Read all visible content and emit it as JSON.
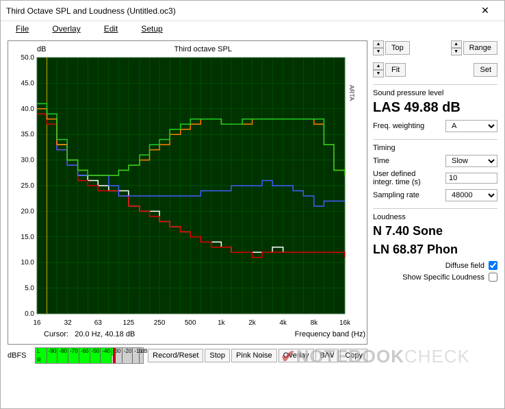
{
  "window": {
    "title": "Third Octave SPL and Loudness (Untitled.oc3)"
  },
  "menu": {
    "file": "File",
    "overlay": "Overlay",
    "edit": "Edit",
    "setup": "Setup"
  },
  "chart": {
    "title": "Third octave SPL",
    "yunit": "dB",
    "ylim": [
      0,
      50
    ],
    "ytick_step": 5,
    "xlabel": "Frequency band (Hz)",
    "xticks": [
      16,
      32,
      63,
      125,
      250,
      500,
      "1k",
      "2k",
      "4k",
      "8k",
      "16k"
    ],
    "xvals_log": [
      16,
      20,
      25,
      31.5,
      40,
      50,
      63,
      80,
      100,
      125,
      160,
      200,
      250,
      315,
      400,
      500,
      630,
      800,
      1000,
      1250,
      1600,
      2000,
      2500,
      3150,
      4000,
      5000,
      6300,
      8000,
      10000,
      12500,
      16000
    ],
    "bg": "#003300",
    "grid": "#006600",
    "border": "#888888",
    "side_label": "ARTA",
    "series": [
      {
        "name": "white",
        "color": "#ffffff",
        "step": [
          40,
          38,
          33,
          30,
          27,
          26,
          25,
          24,
          24,
          21,
          20,
          20,
          18,
          17,
          16,
          15,
          14,
          14,
          13,
          12,
          12,
          12,
          12,
          13,
          12,
          12,
          12,
          12,
          12,
          12,
          12
        ]
      },
      {
        "name": "red",
        "color": "#e00000",
        "step": [
          39,
          37,
          32,
          29,
          26,
          25,
          24,
          24,
          23,
          21,
          20,
          19,
          18,
          17,
          16,
          15,
          14,
          13,
          13,
          12,
          12,
          11,
          12,
          12,
          12,
          12,
          12,
          12,
          12,
          12,
          11
        ]
      },
      {
        "name": "blue",
        "color": "#4060ff",
        "step": [
          40,
          38,
          32,
          29,
          27,
          27,
          27,
          25,
          23,
          23,
          23,
          23,
          23,
          23,
          23,
          23,
          24,
          24,
          24,
          25,
          25,
          25,
          26,
          25,
          25,
          24,
          23,
          21,
          22,
          22,
          22
        ]
      },
      {
        "name": "orange",
        "color": "#ff8000",
        "step": [
          40,
          38,
          33,
          30,
          28,
          27,
          27,
          27,
          28,
          29,
          30,
          32,
          33,
          35,
          36,
          37,
          38,
          38,
          37,
          37,
          37,
          38,
          38,
          38,
          38,
          38,
          38,
          37,
          33,
          28,
          27
        ]
      },
      {
        "name": "green",
        "color": "#20d020",
        "step": [
          41,
          39,
          34,
          30,
          28,
          27,
          27,
          27,
          28,
          29,
          31,
          33,
          34,
          36,
          37,
          38,
          38,
          38,
          37,
          37,
          38,
          38,
          38,
          38,
          38,
          38,
          38,
          38,
          33,
          28,
          27
        ]
      }
    ]
  },
  "cursor": {
    "prefix": "Cursor:",
    "freq": "20.0 Hz,",
    "val": "40.18 dB"
  },
  "dbfs": {
    "label": "dBFS",
    "ticks": [
      -90,
      -80,
      -70,
      -60,
      -50,
      -40,
      -30,
      -20,
      -10
    ],
    "suffix": "dB",
    "L_level_pct": 72,
    "R_level_pct": 70,
    "marker_pct": 72
  },
  "buttons": {
    "record": "Record/Reset",
    "stop": "Stop",
    "pink": "Pink Noise",
    "overlay": "Overlay",
    "bw": "B/W",
    "copy": "Copy"
  },
  "panel": {
    "top_btn": "Top",
    "fit_btn": "Fit",
    "range_btn": "Range",
    "set_btn": "Set",
    "spl_label": "Sound pressure level",
    "spl_value": "LAS 49.88 dB",
    "weight_label": "Freq. weighting",
    "weight_value": "A",
    "timing_label": "Timing",
    "time_label": "Time",
    "time_value": "Slow",
    "integ_label": "User defined integr. time (s)",
    "integ_value": "10",
    "rate_label": "Sampling rate",
    "rate_value": "48000",
    "loud_label": "Loudness",
    "loud_n": "N 7.40 Sone",
    "loud_ln": "LN 68.87 Phon",
    "diffuse_label": "Diffuse field",
    "diffuse_checked": true,
    "showspec_label": "Show Specific Loudness",
    "showspec_checked": false
  }
}
